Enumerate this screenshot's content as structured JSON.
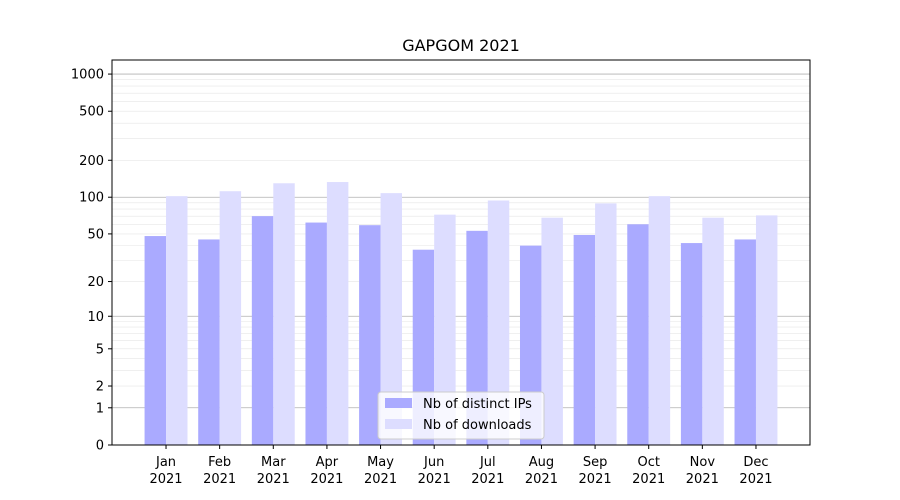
{
  "chart_data": {
    "type": "bar",
    "title": "GAPGOM 2021",
    "xlabel": "",
    "ylabel": "",
    "y_scale": "symlog",
    "ylim": [
      0,
      1300
    ],
    "y_ticks": [
      0,
      1,
      2,
      5,
      10,
      20,
      50,
      100,
      200,
      500,
      1000
    ],
    "y_tick_labels": [
      "0",
      "1",
      "2",
      "5",
      "10",
      "20",
      "50",
      "100",
      "200",
      "500",
      "1000"
    ],
    "grid": true,
    "legend_position": "bottom-center",
    "categories": [
      [
        "Jan",
        "2021"
      ],
      [
        "Feb",
        "2021"
      ],
      [
        "Mar",
        "2021"
      ],
      [
        "Apr",
        "2021"
      ],
      [
        "May",
        "2021"
      ],
      [
        "Jun",
        "2021"
      ],
      [
        "Jul",
        "2021"
      ],
      [
        "Aug",
        "2021"
      ],
      [
        "Sep",
        "2021"
      ],
      [
        "Oct",
        "2021"
      ],
      [
        "Nov",
        "2021"
      ],
      [
        "Dec",
        "2021"
      ]
    ],
    "series": [
      {
        "name": "Nb of distinct IPs",
        "color": "#aaaaff",
        "values": [
          48,
          45,
          70,
          62,
          59,
          37,
          53,
          40,
          49,
          60,
          42,
          45
        ]
      },
      {
        "name": "Nb of downloads",
        "color": "#ddddff",
        "values": [
          102,
          112,
          130,
          133,
          108,
          72,
          94,
          68,
          89,
          102,
          68,
          71
        ]
      }
    ]
  }
}
